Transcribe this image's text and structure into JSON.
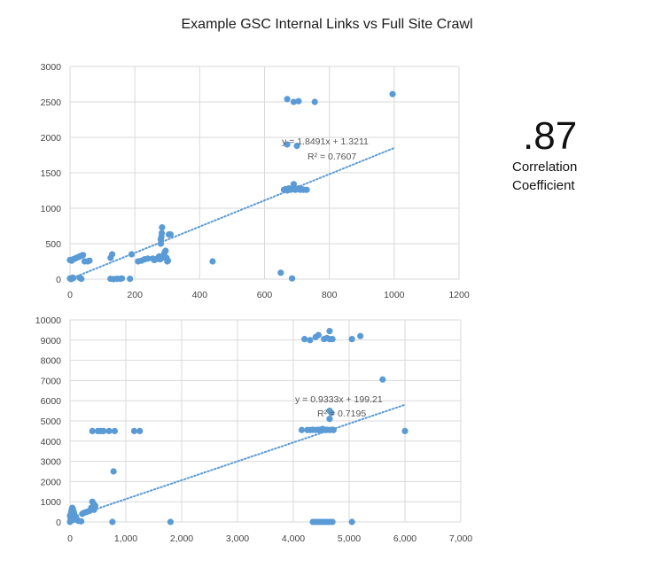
{
  "title": "Example GSC Internal Links vs Full Site Crawl",
  "correlation": {
    "value": ".87",
    "label_line1": "Correlation",
    "label_line2": "Coefficient"
  },
  "colors": {
    "point": "#5b9bd5",
    "trend": "#5b9bd5",
    "grid": "#d9d9d9"
  },
  "chart_data": [
    {
      "type": "scatter",
      "title": "Example GSC Internal Links vs Full Site Crawl",
      "xlim": [
        0,
        1200
      ],
      "ylim": [
        0,
        3000
      ],
      "x_ticks": [
        0,
        200,
        400,
        600,
        800,
        1000,
        1200
      ],
      "y_ticks": [
        0,
        500,
        1000,
        1500,
        2000,
        2500,
        3000
      ],
      "x_tick_labels": [
        "0",
        "200",
        "400",
        "600",
        "800",
        "1000",
        "1200"
      ],
      "y_tick_labels": [
        "0",
        "500",
        "1000",
        "1500",
        "2000",
        "2500",
        "3000"
      ],
      "trendline": {
        "slope": 1.8491,
        "intercept": 1.3211,
        "x_range": [
          0,
          1000
        ]
      },
      "equation": "y = 1.8491x + 1.3211",
      "r_squared": "R² = 0.7607",
      "points": [
        [
          0,
          10
        ],
        [
          5,
          5
        ],
        [
          8,
          20
        ],
        [
          3,
          0
        ],
        [
          10,
          15
        ],
        [
          0,
          270
        ],
        [
          5,
          260
        ],
        [
          10,
          280
        ],
        [
          15,
          290
        ],
        [
          20,
          300
        ],
        [
          25,
          310
        ],
        [
          30,
          320
        ],
        [
          35,
          330
        ],
        [
          40,
          340
        ],
        [
          45,
          250
        ],
        [
          55,
          250
        ],
        [
          60,
          260
        ],
        [
          30,
          20
        ],
        [
          35,
          5
        ],
        [
          125,
          300
        ],
        [
          130,
          350
        ],
        [
          125,
          5
        ],
        [
          135,
          0
        ],
        [
          145,
          5
        ],
        [
          155,
          5
        ],
        [
          160,
          10
        ],
        [
          185,
          5
        ],
        [
          190,
          350
        ],
        [
          210,
          250
        ],
        [
          220,
          260
        ],
        [
          230,
          280
        ],
        [
          240,
          290
        ],
        [
          255,
          290
        ],
        [
          260,
          270
        ],
        [
          265,
          280
        ],
        [
          270,
          290
        ],
        [
          272,
          300
        ],
        [
          275,
          320
        ],
        [
          278,
          280
        ],
        [
          280,
          500
        ],
        [
          280,
          560
        ],
        [
          282,
          600
        ],
        [
          283,
          650
        ],
        [
          284,
          730
        ],
        [
          285,
          300
        ],
        [
          290,
          350
        ],
        [
          292,
          380
        ],
        [
          295,
          400
        ],
        [
          298,
          300
        ],
        [
          300,
          250
        ],
        [
          302,
          260
        ],
        [
          305,
          630
        ],
        [
          310,
          630
        ],
        [
          440,
          250
        ],
        [
          650,
          90
        ],
        [
          685,
          10
        ],
        [
          660,
          1260
        ],
        [
          665,
          1270
        ],
        [
          670,
          1250
        ],
        [
          675,
          1280
        ],
        [
          680,
          1260
        ],
        [
          685,
          1270
        ],
        [
          690,
          1290
        ],
        [
          695,
          1260
        ],
        [
          700,
          1270
        ],
        [
          705,
          1280
        ],
        [
          710,
          1260
        ],
        [
          715,
          1270
        ],
        [
          720,
          1260
        ],
        [
          690,
          1340
        ],
        [
          730,
          1260
        ],
        [
          670,
          1900
        ],
        [
          700,
          1880
        ],
        [
          670,
          2540
        ],
        [
          690,
          2500
        ],
        [
          705,
          2510
        ],
        [
          755,
          2500
        ],
        [
          995,
          2610
        ]
      ]
    },
    {
      "type": "scatter",
      "xlim": [
        0,
        7000
      ],
      "ylim": [
        0,
        10000
      ],
      "x_ticks": [
        0,
        1000,
        2000,
        3000,
        4000,
        5000,
        6000,
        7000
      ],
      "y_ticks": [
        0,
        1000,
        2000,
        3000,
        4000,
        5000,
        6000,
        7000,
        8000,
        9000,
        10000
      ],
      "x_tick_labels": [
        "0",
        "1,000",
        "2,000",
        "3,000",
        "4,000",
        "5,000",
        "6,000",
        "7,000"
      ],
      "y_tick_labels": [
        "0",
        "1000",
        "2000",
        "3000",
        "4000",
        "5000",
        "6000",
        "7000",
        "8000",
        "9000",
        "10000"
      ],
      "trendline": {
        "slope": 0.9333,
        "intercept": 199.21,
        "x_range": [
          0,
          6000
        ]
      },
      "equation": "y = 0.9333x + 199.21",
      "r_squared": "R² = 0.7195",
      "points": [
        [
          0,
          0
        ],
        [
          10,
          100
        ],
        [
          20,
          200
        ],
        [
          0,
          300
        ],
        [
          15,
          400
        ],
        [
          25,
          500
        ],
        [
          30,
          600
        ],
        [
          40,
          700
        ],
        [
          50,
          650
        ],
        [
          60,
          550
        ],
        [
          70,
          450
        ],
        [
          80,
          350
        ],
        [
          100,
          250
        ],
        [
          120,
          150
        ],
        [
          60,
          100
        ],
        [
          150,
          50
        ],
        [
          200,
          30
        ],
        [
          220,
          400
        ],
        [
          250,
          450
        ],
        [
          300,
          500
        ],
        [
          350,
          550
        ],
        [
          400,
          1000
        ],
        [
          420,
          900
        ],
        [
          450,
          800
        ],
        [
          430,
          600
        ],
        [
          380,
          700
        ],
        [
          760,
          0
        ],
        [
          1800,
          0
        ],
        [
          400,
          4500
        ],
        [
          500,
          4500
        ],
        [
          550,
          4500
        ],
        [
          600,
          4500
        ],
        [
          700,
          4500
        ],
        [
          800,
          4500
        ],
        [
          780,
          2500
        ],
        [
          1150,
          4500
        ],
        [
          1250,
          4500
        ],
        [
          4150,
          4550
        ],
        [
          4250,
          4550
        ],
        [
          4300,
          4550
        ],
        [
          4350,
          4560
        ],
        [
          4400,
          4550
        ],
        [
          4450,
          4560
        ],
        [
          4500,
          4550
        ],
        [
          4520,
          4600
        ],
        [
          4550,
          4570
        ],
        [
          4580,
          4550
        ],
        [
          4600,
          4560
        ],
        [
          4650,
          4550
        ],
        [
          4700,
          4560
        ],
        [
          4720,
          4550
        ],
        [
          4650,
          5100
        ],
        [
          4650,
          5500
        ],
        [
          4680,
          5400
        ],
        [
          4200,
          9050
        ],
        [
          4300,
          9000
        ],
        [
          4400,
          9150
        ],
        [
          4450,
          9250
        ],
        [
          4550,
          9050
        ],
        [
          4600,
          9100
        ],
        [
          4650,
          9050
        ],
        [
          4700,
          9050
        ],
        [
          4650,
          9450
        ],
        [
          5050,
          9050
        ],
        [
          5200,
          9200
        ],
        [
          5600,
          7050
        ],
        [
          6000,
          4500
        ],
        [
          4350,
          0
        ],
        [
          4400,
          0
        ],
        [
          4450,
          0
        ],
        [
          4500,
          0
        ],
        [
          4550,
          0
        ],
        [
          4600,
          0
        ],
        [
          4650,
          0
        ],
        [
          4700,
          0
        ],
        [
          5050,
          0
        ]
      ]
    }
  ]
}
